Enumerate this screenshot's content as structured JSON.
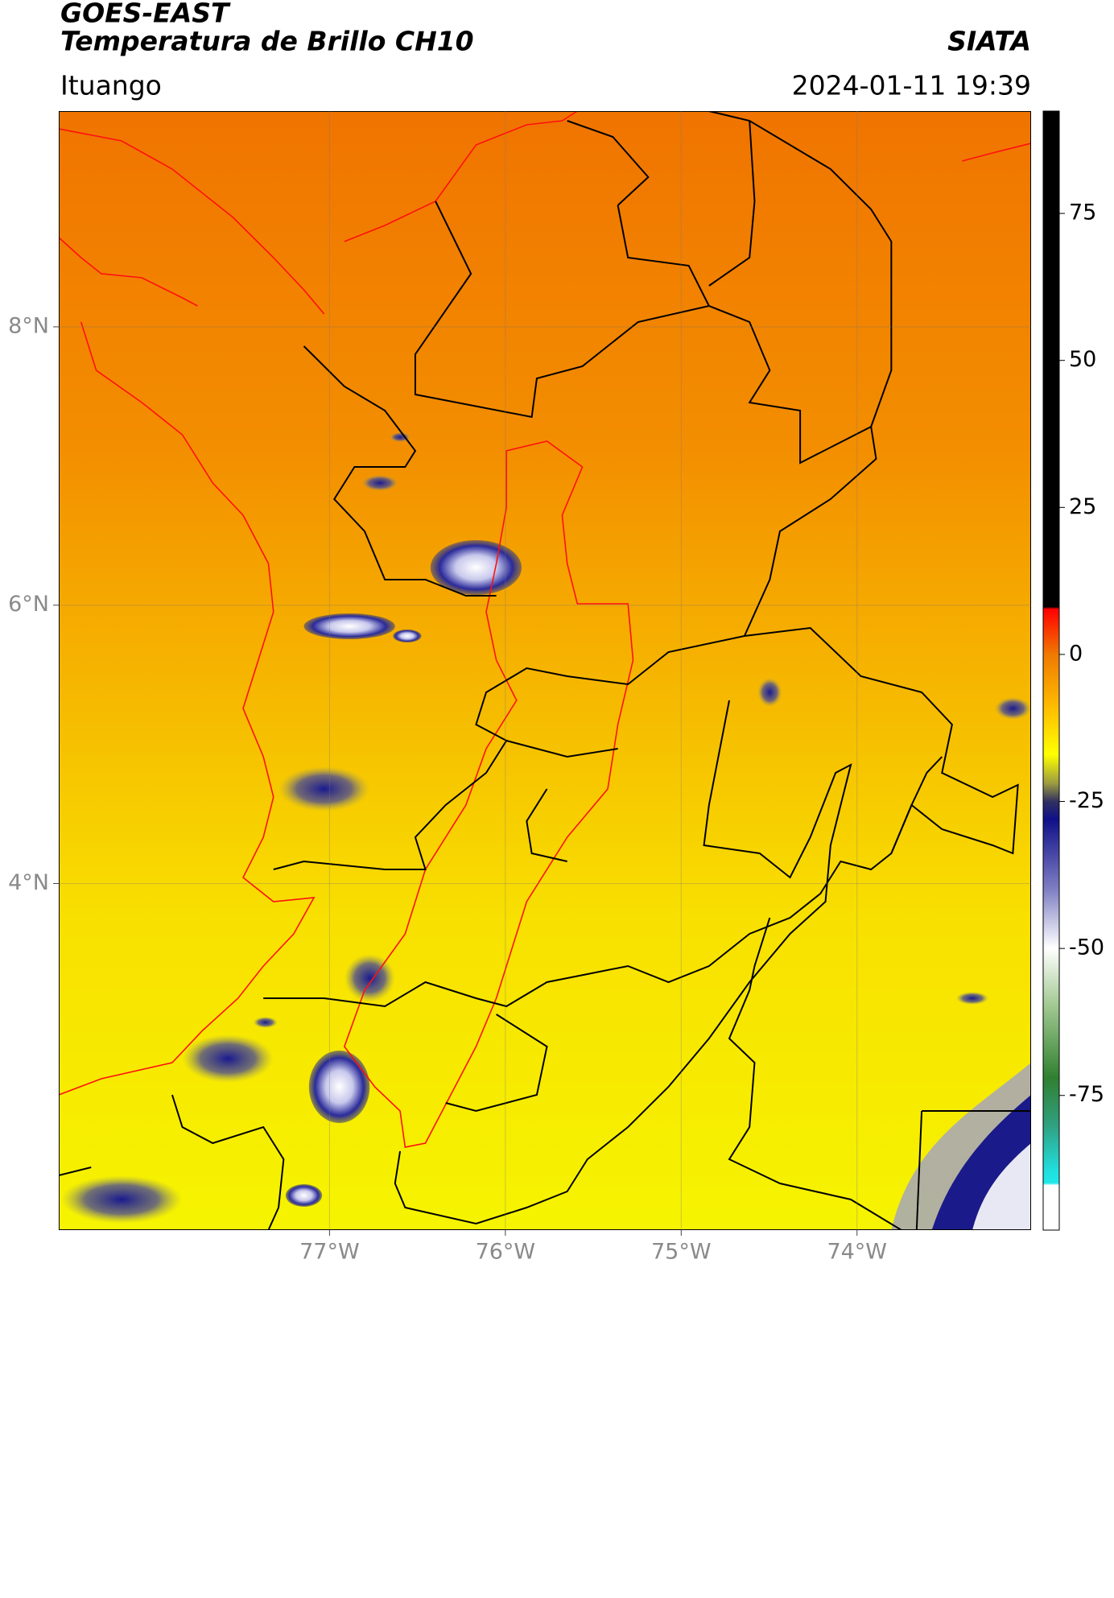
{
  "header": {
    "title": "GOES-EAST",
    "subtitle": "Temperatura de Brillo CH10",
    "agency": "SIATA",
    "location": "Ituango",
    "datetime": "2024-01-11 19:39"
  },
  "map": {
    "xlim": [
      -78.54,
      -73.01
    ],
    "ylim": [
      1.51,
      9.55
    ],
    "xticks": [
      {
        "value": -77,
        "label": "77°W"
      },
      {
        "value": -76,
        "label": "76°W"
      },
      {
        "value": -75,
        "label": "75°W"
      },
      {
        "value": -74,
        "label": "74°W"
      }
    ],
    "yticks": [
      {
        "value": 4,
        "label": "4°N"
      },
      {
        "value": 6,
        "label": "6°N"
      },
      {
        "value": 8,
        "label": "8°N"
      }
    ],
    "grid": true
  },
  "colorbar": {
    "lim": [
      -97.9,
      92.4
    ],
    "ticks": [
      -75,
      -50,
      -25,
      0,
      25,
      50,
      75
    ]
  }
}
